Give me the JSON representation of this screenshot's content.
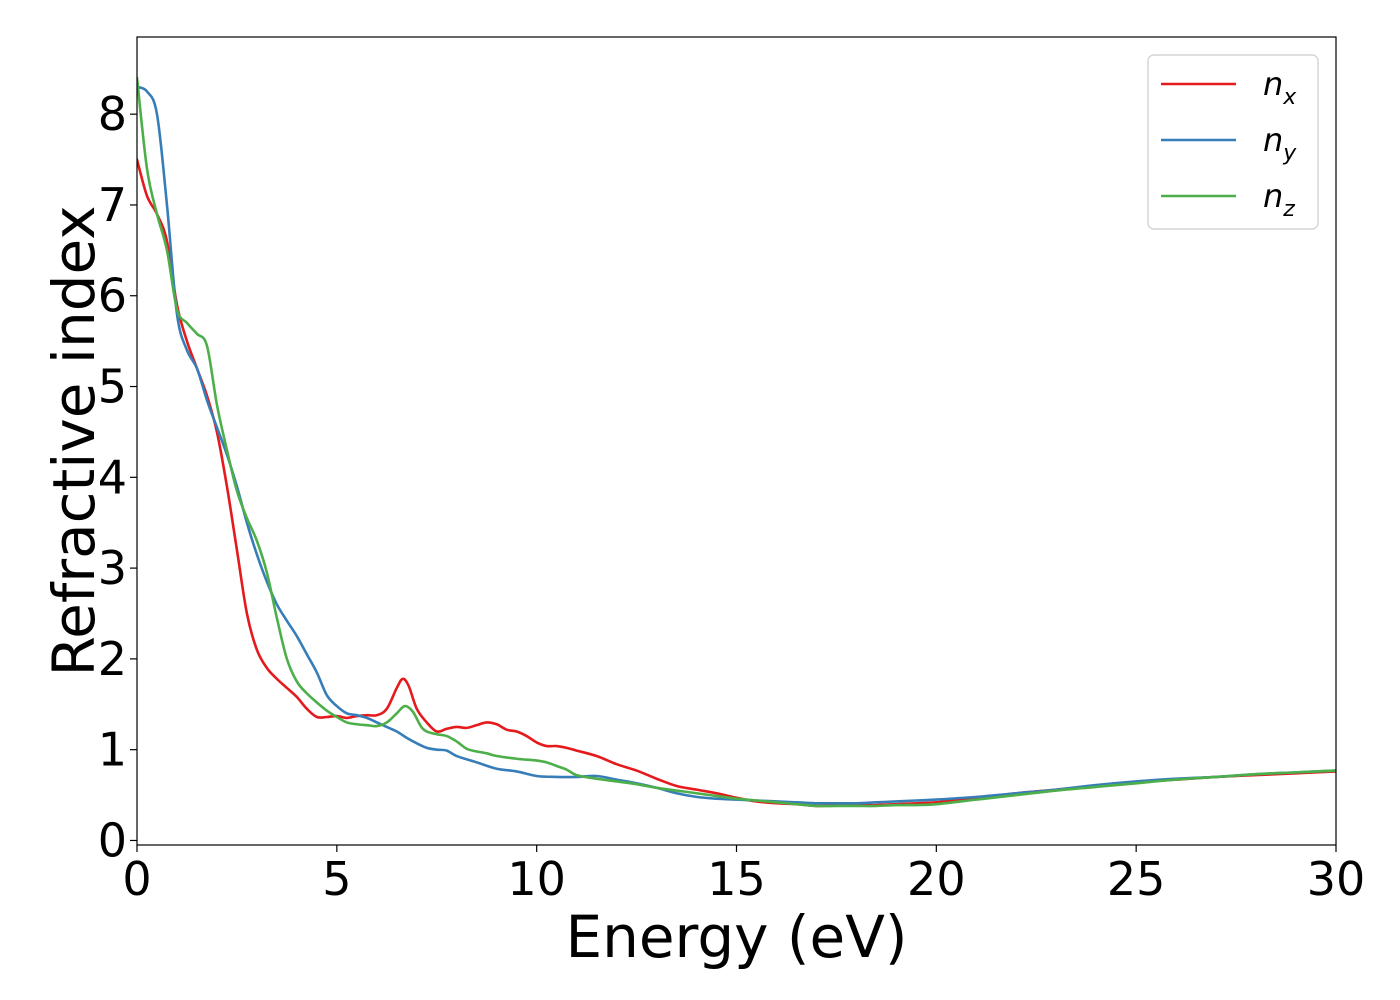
{
  "chart_data": {
    "type": "line",
    "title": "",
    "xlabel": "Energy (eV)",
    "ylabel": "Refractive index",
    "xlim": [
      0,
      30
    ],
    "ylim": [
      -0.05,
      8.85
    ],
    "xticks": [
      "0",
      "5",
      "10",
      "15",
      "20",
      "25",
      "30"
    ],
    "xtick_values": [
      0,
      5,
      10,
      15,
      20,
      25,
      30
    ],
    "yticks": [
      "0",
      "1",
      "2",
      "3",
      "4",
      "5",
      "6",
      "7",
      "8"
    ],
    "ytick_values": [
      0,
      1,
      2,
      3,
      4,
      5,
      6,
      7,
      8
    ],
    "grid": false,
    "legend_position": "top-right",
    "series": [
      {
        "id": "nx",
        "name": "n_x",
        "legend_base": "n",
        "legend_sub": "x",
        "color": "#e41a1c",
        "x": [
          0,
          0.25,
          0.5,
          0.75,
          1.0,
          1.25,
          1.5,
          1.75,
          2.0,
          2.25,
          2.5,
          2.75,
          3.0,
          3.25,
          3.5,
          3.75,
          4.0,
          4.25,
          4.5,
          4.75,
          5.0,
          5.25,
          5.5,
          5.75,
          6.0,
          6.25,
          6.5,
          6.65,
          6.8,
          7.0,
          7.25,
          7.5,
          7.75,
          8.0,
          8.25,
          8.5,
          8.75,
          9.0,
          9.25,
          9.5,
          9.75,
          10.0,
          10.25,
          10.5,
          10.75,
          11.0,
          11.5,
          12.0,
          12.5,
          13.0,
          13.5,
          14.0,
          14.5,
          15.0,
          15.5,
          16.0,
          16.5,
          17.0,
          17.5,
          18.0,
          18.5,
          19.0,
          19.5,
          20.0,
          21.0,
          22.0,
          23.0,
          24.0,
          25.0,
          26.0,
          27.0,
          28.0,
          29.0,
          30.0
        ],
        "values": [
          7.5,
          7.1,
          6.9,
          6.6,
          5.9,
          5.5,
          5.2,
          4.9,
          4.5,
          3.9,
          3.2,
          2.5,
          2.1,
          1.9,
          1.78,
          1.68,
          1.58,
          1.45,
          1.36,
          1.36,
          1.37,
          1.35,
          1.37,
          1.38,
          1.38,
          1.45,
          1.68,
          1.78,
          1.7,
          1.45,
          1.3,
          1.2,
          1.23,
          1.25,
          1.24,
          1.27,
          1.3,
          1.28,
          1.22,
          1.2,
          1.15,
          1.08,
          1.04,
          1.04,
          1.02,
          0.99,
          0.93,
          0.84,
          0.77,
          0.68,
          0.6,
          0.56,
          0.52,
          0.47,
          0.43,
          0.41,
          0.4,
          0.38,
          0.39,
          0.39,
          0.39,
          0.4,
          0.41,
          0.42,
          0.47,
          0.52,
          0.56,
          0.6,
          0.64,
          0.67,
          0.7,
          0.72,
          0.74,
          0.76
        ]
      },
      {
        "id": "ny",
        "name": "n_y",
        "legend_base": "n",
        "legend_sub": "y",
        "color": "#377eb8",
        "x": [
          0,
          0.25,
          0.5,
          0.75,
          1.0,
          1.25,
          1.5,
          1.75,
          2.0,
          2.25,
          2.5,
          2.75,
          3.0,
          3.25,
          3.5,
          3.75,
          4.0,
          4.25,
          4.5,
          4.75,
          5.0,
          5.25,
          5.5,
          5.75,
          6.0,
          6.25,
          6.5,
          6.75,
          7.0,
          7.25,
          7.5,
          7.75,
          8.0,
          8.5,
          9.0,
          9.5,
          10.0,
          10.5,
          11.0,
          11.5,
          12.0,
          12.5,
          13.0,
          13.5,
          14.0,
          14.5,
          15.0,
          15.5,
          16.0,
          16.5,
          17.0,
          17.5,
          18.0,
          18.5,
          19.0,
          19.5,
          20.0,
          21.0,
          22.0,
          23.0,
          24.0,
          25.0,
          26.0,
          27.0,
          28.0,
          29.0,
          30.0
        ],
        "values": [
          8.3,
          8.25,
          8.0,
          7.0,
          5.8,
          5.4,
          5.2,
          4.85,
          4.55,
          4.25,
          3.9,
          3.5,
          3.15,
          2.85,
          2.6,
          2.42,
          2.25,
          2.05,
          1.85,
          1.6,
          1.48,
          1.4,
          1.38,
          1.35,
          1.3,
          1.25,
          1.2,
          1.13,
          1.07,
          1.02,
          1.0,
          0.99,
          0.93,
          0.86,
          0.79,
          0.76,
          0.71,
          0.7,
          0.7,
          0.71,
          0.67,
          0.63,
          0.58,
          0.52,
          0.48,
          0.46,
          0.45,
          0.44,
          0.43,
          0.42,
          0.41,
          0.41,
          0.41,
          0.42,
          0.43,
          0.44,
          0.45,
          0.48,
          0.52,
          0.56,
          0.61,
          0.65,
          0.68,
          0.7,
          0.73,
          0.75,
          0.77
        ]
      },
      {
        "id": "nz",
        "name": "n_z",
        "legend_base": "n",
        "legend_sub": "z",
        "color": "#4daf4a",
        "x": [
          0,
          0.25,
          0.5,
          0.75,
          1.0,
          1.25,
          1.5,
          1.75,
          2.0,
          2.25,
          2.5,
          2.75,
          3.0,
          3.25,
          3.5,
          3.75,
          4.0,
          4.25,
          4.5,
          4.75,
          5.0,
          5.25,
          5.5,
          5.75,
          6.0,
          6.25,
          6.5,
          6.7,
          6.9,
          7.1,
          7.25,
          7.5,
          7.75,
          8.0,
          8.25,
          8.5,
          8.75,
          9.0,
          9.5,
          10.0,
          10.25,
          10.5,
          10.75,
          11.0,
          11.5,
          12.0,
          12.5,
          13.0,
          13.5,
          14.0,
          14.5,
          15.0,
          15.5,
          16.0,
          16.5,
          17.0,
          17.5,
          18.0,
          18.5,
          19.0,
          19.5,
          20.0,
          21.0,
          22.0,
          23.0,
          24.0,
          25.0,
          26.0,
          27.0,
          28.0,
          29.0,
          30.0
        ],
        "values": [
          8.4,
          7.4,
          6.9,
          6.5,
          5.85,
          5.7,
          5.58,
          5.45,
          4.8,
          4.3,
          3.85,
          3.55,
          3.3,
          2.95,
          2.45,
          2.0,
          1.75,
          1.62,
          1.52,
          1.43,
          1.36,
          1.3,
          1.28,
          1.27,
          1.26,
          1.3,
          1.4,
          1.48,
          1.42,
          1.26,
          1.2,
          1.17,
          1.15,
          1.09,
          1.01,
          0.98,
          0.96,
          0.93,
          0.9,
          0.88,
          0.86,
          0.82,
          0.78,
          0.72,
          0.68,
          0.65,
          0.62,
          0.58,
          0.55,
          0.52,
          0.49,
          0.46,
          0.44,
          0.42,
          0.4,
          0.38,
          0.38,
          0.38,
          0.38,
          0.39,
          0.39,
          0.4,
          0.45,
          0.5,
          0.55,
          0.59,
          0.63,
          0.67,
          0.7,
          0.73,
          0.75,
          0.77
        ]
      }
    ]
  }
}
